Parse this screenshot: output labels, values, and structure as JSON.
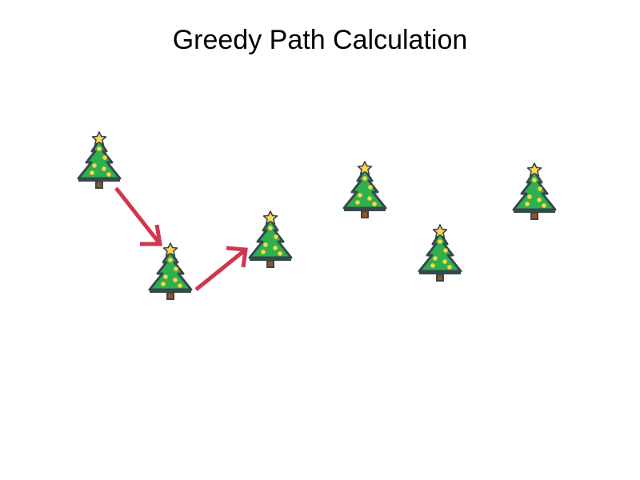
{
  "title": "Greedy Path Calculation",
  "colors": {
    "tree_fill": "#2eb04f",
    "tree_outline": "#37474f",
    "trunk": "#8d5524",
    "star": "#ffd54f",
    "ornament": "#ffd740",
    "arrow": "#d0374f",
    "background": "#ffffff"
  },
  "icon": "christmas-tree-icon",
  "tree_count": 6,
  "path_step_count": 2
}
